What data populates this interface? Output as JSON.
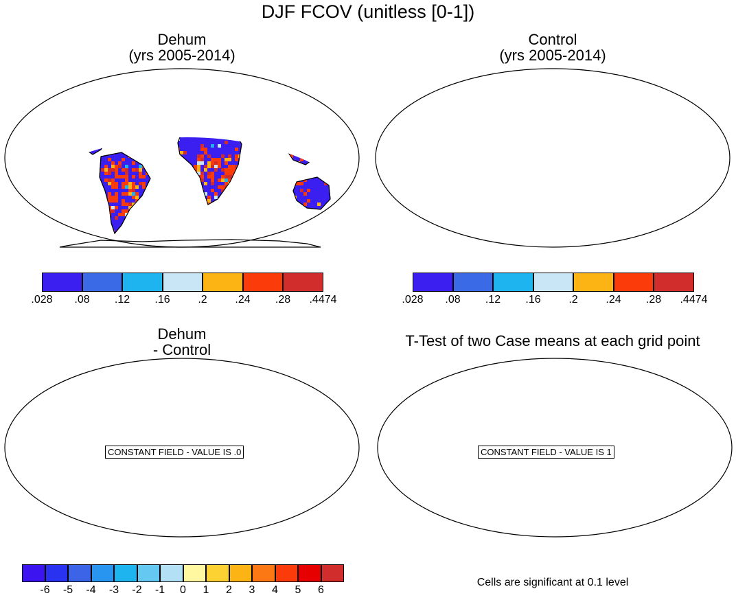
{
  "title": "DJF FCOV (unitless [0-1])",
  "panels": [
    {
      "id": "dehum",
      "title_line1": "Dehum",
      "title_line2": "(yrs 2005-2014)"
    },
    {
      "id": "control",
      "title_line1": "Control",
      "title_line2": "(yrs 2005-2014)"
    },
    {
      "id": "difference",
      "title_line1": "Dehum",
      "title_line2": "- Control",
      "annotation": "CONSTANT FIELD - VALUE IS .0"
    },
    {
      "id": "ttest",
      "title_line1": "T-Test of two Case means at each grid point",
      "annotation": "CONSTANT FIELD - VALUE IS 1"
    }
  ],
  "colorbar_main": {
    "colors": [
      "#3b1ef0",
      "#3b6ae6",
      "#1eb4f0",
      "#c8e6f5",
      "#fbb414",
      "#fb3c0a",
      "#d22d2d"
    ],
    "labels": [
      ".028",
      ".08",
      ".12",
      ".16",
      ".2",
      ".24",
      ".28",
      ".4474"
    ]
  },
  "colorbar_diff": {
    "colors": [
      "#3c14f0",
      "#2832f0",
      "#3c64e6",
      "#2896f0",
      "#1eb4f0",
      "#64c8f0",
      "#b4e0f5",
      "#fff8a0",
      "#fcd232",
      "#fcb414",
      "#fb7814",
      "#fb3c0a",
      "#e60000",
      "#d22d2d"
    ],
    "labels": [
      "-6",
      "-5",
      "-4",
      "-3",
      "-2",
      "-1",
      "0",
      "1",
      "2",
      "3",
      "4",
      "5",
      "6"
    ]
  },
  "footnote": "Cells are significant at 0.1 level"
}
